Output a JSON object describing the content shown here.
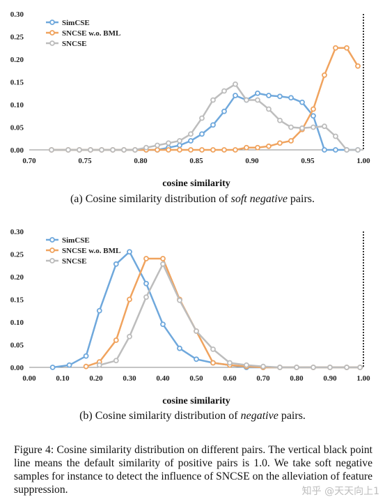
{
  "chart_data": [
    {
      "type": "line",
      "xlabel": "cosine  similarity",
      "xlim": [
        0.7,
        1.0
      ],
      "ylim": [
        0,
        0.3
      ],
      "xticks": [
        "0.70",
        "0.75",
        "0.80",
        "0.85",
        "0.90",
        "0.95",
        "1.00"
      ],
      "yticks": [
        "0.00",
        "0.05",
        "0.10",
        "0.15",
        "0.20",
        "0.25",
        "0.30"
      ],
      "legend_position": "top-left",
      "reference_line_x": 1.0,
      "series": [
        {
          "name": "SimCSE",
          "color": "#6fa8dc",
          "x": [
            0.72,
            0.735,
            0.745,
            0.755,
            0.765,
            0.775,
            0.785,
            0.795,
            0.805,
            0.815,
            0.825,
            0.835,
            0.845,
            0.855,
            0.865,
            0.875,
            0.885,
            0.895,
            0.905,
            0.915,
            0.925,
            0.935,
            0.945,
            0.955,
            0.965,
            0.975,
            0.985,
            0.995
          ],
          "y": [
            0,
            0,
            0,
            0,
            0,
            0,
            0,
            0,
            0,
            0,
            0.005,
            0.01,
            0.02,
            0.035,
            0.055,
            0.085,
            0.12,
            0.11,
            0.125,
            0.12,
            0.118,
            0.115,
            0.105,
            0.075,
            0,
            0,
            0,
            0
          ]
        },
        {
          "name": "SNCSE w.o. BML",
          "color": "#f0a35e",
          "x": [
            0.72,
            0.735,
            0.745,
            0.755,
            0.765,
            0.775,
            0.785,
            0.795,
            0.805,
            0.815,
            0.825,
            0.835,
            0.845,
            0.855,
            0.865,
            0.875,
            0.885,
            0.895,
            0.905,
            0.915,
            0.925,
            0.935,
            0.945,
            0.955,
            0.965,
            0.975,
            0.985,
            0.995
          ],
          "y": [
            0,
            0,
            0,
            0,
            0,
            0,
            0,
            0,
            0,
            0,
            0,
            0,
            0,
            0,
            0,
            0,
            0,
            0.005,
            0.005,
            0.008,
            0.015,
            0.02,
            0.045,
            0.09,
            0.165,
            0.225,
            0.225,
            0.185
          ]
        },
        {
          "name": "SNCSE",
          "color": "#bdbdbd",
          "x": [
            0.72,
            0.735,
            0.745,
            0.755,
            0.765,
            0.775,
            0.785,
            0.795,
            0.805,
            0.815,
            0.825,
            0.835,
            0.845,
            0.855,
            0.865,
            0.875,
            0.885,
            0.895,
            0.905,
            0.915,
            0.925,
            0.935,
            0.945,
            0.955,
            0.965,
            0.975,
            0.985,
            0.995
          ],
          "y": [
            0,
            0,
            0,
            0,
            0,
            0,
            0,
            0,
            0.005,
            0.01,
            0.015,
            0.02,
            0.035,
            0.07,
            0.11,
            0.13,
            0.145,
            0.11,
            0.11,
            0.09,
            0.065,
            0.05,
            0.048,
            0.05,
            0.052,
            0.03,
            0,
            0
          ]
        }
      ]
    },
    {
      "type": "line",
      "xlabel": "cosine  similarity",
      "xlim": [
        0.0,
        1.0
      ],
      "ylim": [
        0,
        0.3
      ],
      "xticks": [
        "0.00",
        "0.10",
        "0.20",
        "0.30",
        "0.40",
        "0.50",
        "0.60",
        "0.70",
        "0.80",
        "0.90",
        "1.00"
      ],
      "yticks": [
        "0.00",
        "0.05",
        "0.10",
        "0.15",
        "0.20",
        "0.25",
        "0.30"
      ],
      "legend_position": "top-left",
      "reference_line_x": 1.0,
      "series": [
        {
          "name": "SimCSE",
          "color": "#6fa8dc",
          "x": [
            0.07,
            0.12,
            0.17,
            0.21,
            0.26,
            0.3,
            0.35,
            0.4,
            0.45,
            0.5,
            0.55,
            0.6,
            0.65,
            0.7,
            0.75,
            0.8,
            0.85,
            0.9,
            0.95,
            0.99
          ],
          "y": [
            0,
            0.005,
            0.025,
            0.125,
            0.228,
            0.255,
            0.185,
            0.095,
            0.042,
            0.018,
            0.01,
            0.005,
            0,
            0,
            0,
            0,
            0,
            0,
            0,
            0
          ]
        },
        {
          "name": "SNCSE w.o. BML",
          "color": "#f0a35e",
          "x": [
            0.17,
            0.21,
            0.26,
            0.3,
            0.35,
            0.4,
            0.45,
            0.5,
            0.55,
            0.6,
            0.65,
            0.7,
            0.75,
            0.8,
            0.85,
            0.9,
            0.95,
            0.99
          ],
          "y": [
            0.002,
            0.012,
            0.06,
            0.15,
            0.24,
            0.24,
            0.15,
            0.08,
            0.01,
            0.005,
            0.002,
            0,
            0,
            0,
            0,
            0,
            0,
            0
          ]
        },
        {
          "name": "SNCSE",
          "color": "#bdbdbd",
          "x": [
            0.21,
            0.26,
            0.3,
            0.35,
            0.4,
            0.45,
            0.5,
            0.55,
            0.6,
            0.65,
            0.7,
            0.75,
            0.8,
            0.85,
            0.9,
            0.95,
            0.99
          ],
          "y": [
            0.005,
            0.015,
            0.068,
            0.155,
            0.228,
            0.148,
            0.08,
            0.04,
            0.01,
            0.005,
            0.002,
            0,
            0,
            0,
            0,
            0,
            0
          ]
        }
      ]
    }
  ],
  "captions": {
    "a_prefix": "(a)  Cosine similarity distribution of ",
    "a_em": "soft negative",
    "a_suffix": " pairs.",
    "b_prefix": "(b)  Cosine similarity distribution of ",
    "b_em": "negative",
    "b_suffix": " pairs.",
    "figure": "Figure 4: Cosine similarity distribution on different pairs. The vertical black point line means the default similarity of positive pairs is 1.0. We take soft negative samples for instance to detect the influence of SNCSE on the alleviation of feature suppression."
  },
  "watermark": "知乎 @天天向上1"
}
